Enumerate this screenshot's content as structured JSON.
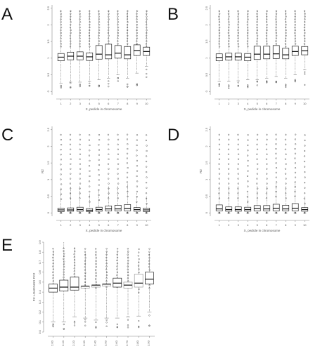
{
  "chart_data": [
    {
      "type": "box",
      "panel": "A",
      "xlabel": "X, pedicle in chromosome",
      "ylabel": "",
      "categories": [
        "1",
        "2",
        "3",
        "4",
        "5",
        "6",
        "7",
        "8",
        "9",
        "10"
      ],
      "yticks": [
        "0",
        "0.5",
        "1",
        "1.5",
        "2",
        "2.5"
      ],
      "ylim": [
        -0.1,
        2.6
      ],
      "boxes": [
        {
          "q1": 0.92,
          "median": 1.03,
          "q3": 1.14,
          "low": 0.25,
          "high": 2.45,
          "notch_out": 0.1,
          "notch_in": 0.15
        },
        {
          "q1": 0.95,
          "median": 1.06,
          "q3": 1.18,
          "low": 0.28,
          "high": 2.45
        },
        {
          "q1": 0.95,
          "median": 1.06,
          "q3": 1.19,
          "low": 0.28,
          "high": 2.45
        },
        {
          "q1": 0.93,
          "median": 1.04,
          "q3": 1.16,
          "low": 0.3,
          "high": 2.45
        },
        {
          "q1": 0.97,
          "median": 1.12,
          "q3": 1.38,
          "low": 0.35,
          "high": 2.45
        },
        {
          "q1": 0.98,
          "median": 1.1,
          "q3": 1.42,
          "low": 0.4,
          "high": 2.45
        },
        {
          "q1": 1.0,
          "median": 1.15,
          "q3": 1.38,
          "low": 0.5,
          "high": 2.45
        },
        {
          "q1": 0.98,
          "median": 1.1,
          "q3": 1.35,
          "low": 0.4,
          "high": 2.45
        },
        {
          "q1": 1.08,
          "median": 1.23,
          "q3": 1.4,
          "low": 0.55,
          "high": 2.45
        },
        {
          "q1": 1.08,
          "median": 1.2,
          "q3": 1.33,
          "low": 0.75,
          "high": 2.45
        }
      ]
    },
    {
      "type": "box",
      "panel": "B",
      "xlabel": "X, pedicle in chromosome",
      "ylabel": "",
      "categories": [
        "1",
        "2",
        "3",
        "4",
        "5",
        "6",
        "7",
        "8",
        "9",
        "10"
      ],
      "yticks": [
        "0",
        "0.5",
        "1",
        "1.5",
        "2",
        "2.5"
      ],
      "ylim": [
        -0.1,
        2.6
      ],
      "boxes": [
        {
          "q1": 0.92,
          "median": 1.02,
          "q3": 1.13,
          "low": 0.3,
          "high": 2.45
        },
        {
          "q1": 0.94,
          "median": 1.04,
          "q3": 1.15,
          "low": 0.3,
          "high": 2.45
        },
        {
          "q1": 0.94,
          "median": 1.04,
          "q3": 1.15,
          "low": 0.32,
          "high": 2.45
        },
        {
          "q1": 0.92,
          "median": 1.03,
          "q3": 1.14,
          "low": 0.35,
          "high": 2.45
        },
        {
          "q1": 0.96,
          "median": 1.12,
          "q3": 1.36,
          "low": 0.35,
          "high": 2.45
        },
        {
          "q1": 0.98,
          "median": 1.12,
          "q3": 1.36,
          "low": 0.4,
          "high": 2.45
        },
        {
          "q1": 0.99,
          "median": 1.13,
          "q3": 1.38,
          "low": 0.45,
          "high": 2.45
        },
        {
          "q1": 0.98,
          "median": 1.1,
          "q3": 1.3,
          "low": 0.4,
          "high": 2.45
        },
        {
          "q1": 1.08,
          "median": 1.2,
          "q3": 1.36,
          "low": 0.5,
          "high": 2.45
        },
        {
          "q1": 1.1,
          "median": 1.22,
          "q3": 1.35,
          "low": 0.65,
          "high": 2.45
        }
      ]
    },
    {
      "type": "box",
      "panel": "C",
      "xlabel": "X, pedicle in chromosome",
      "ylabel": "R2",
      "categories": [
        "1",
        "2",
        "3",
        "4",
        "5",
        "6",
        "7",
        "8",
        "9",
        "10"
      ],
      "yticks": [
        "0",
        "0.5",
        "1",
        "1.5",
        "2",
        "2.5"
      ],
      "ylim": [
        -0.1,
        2.6
      ],
      "boxes": [
        {
          "q1": 0.04,
          "median": 0.09,
          "q3": 0.14,
          "low": 0.0,
          "high": 0.75
        },
        {
          "q1": 0.05,
          "median": 0.09,
          "q3": 0.15,
          "low": 0.0,
          "high": 0.8
        },
        {
          "q1": 0.05,
          "median": 0.1,
          "q3": 0.17,
          "low": 0.0,
          "high": 0.8
        },
        {
          "q1": 0.04,
          "median": 0.08,
          "q3": 0.13,
          "low": 0.0,
          "high": 0.6
        },
        {
          "q1": 0.05,
          "median": 0.1,
          "q3": 0.17,
          "low": 0.0,
          "high": 0.7
        },
        {
          "q1": 0.06,
          "median": 0.12,
          "q3": 0.21,
          "low": 0.0,
          "high": 0.8
        },
        {
          "q1": 0.06,
          "median": 0.12,
          "q3": 0.23,
          "low": 0.0,
          "high": 0.8
        },
        {
          "q1": 0.06,
          "median": 0.13,
          "q3": 0.25,
          "low": 0.0,
          "high": 0.9
        },
        {
          "q1": 0.05,
          "median": 0.1,
          "q3": 0.16,
          "low": 0.0,
          "high": 0.6
        },
        {
          "q1": 0.04,
          "median": 0.09,
          "q3": 0.14,
          "low": 0.0,
          "high": 0.5
        }
      ]
    },
    {
      "type": "box",
      "panel": "D",
      "xlabel": "X, pedicle in chromosome",
      "ylabel": "R2",
      "categories": [
        "1",
        "2",
        "3",
        "4",
        "5",
        "6",
        "7",
        "8",
        "9",
        "10"
      ],
      "yticks": [
        "0",
        "0.5",
        "1",
        "1.5",
        "2",
        "2.5"
      ],
      "ylim": [
        -0.1,
        2.6
      ],
      "boxes": [
        {
          "q1": 0.06,
          "median": 0.12,
          "q3": 0.24,
          "low": 0.0,
          "high": 0.8
        },
        {
          "q1": 0.05,
          "median": 0.1,
          "q3": 0.18,
          "low": 0.0,
          "high": 0.8
        },
        {
          "q1": 0.05,
          "median": 0.1,
          "q3": 0.18,
          "low": 0.0,
          "high": 0.8
        },
        {
          "q1": 0.05,
          "median": 0.1,
          "q3": 0.17,
          "low": 0.0,
          "high": 0.6
        },
        {
          "q1": 0.06,
          "median": 0.13,
          "q3": 0.22,
          "low": 0.0,
          "high": 0.8
        },
        {
          "q1": 0.06,
          "median": 0.12,
          "q3": 0.22,
          "low": 0.0,
          "high": 0.8
        },
        {
          "q1": 0.06,
          "median": 0.14,
          "q3": 0.26,
          "low": 0.0,
          "high": 0.9
        },
        {
          "q1": 0.06,
          "median": 0.12,
          "q3": 0.23,
          "low": 0.0,
          "high": 0.8
        },
        {
          "q1": 0.06,
          "median": 0.14,
          "q3": 0.28,
          "low": 0.0,
          "high": 0.9
        },
        {
          "q1": 0.05,
          "median": 0.1,
          "q3": 0.16,
          "low": 0.0,
          "high": 0.5
        }
      ]
    },
    {
      "type": "box",
      "panel": "E",
      "xlabel": "",
      "ylabel": "PC LOADINGS PC2",
      "categories": [
        "2.00",
        "2.10",
        "2.20",
        "2.30",
        "2.40",
        "2.50",
        "2.60",
        "2.70",
        "2.80",
        "2.90"
      ],
      "yticks": [
        "0.0",
        "0.1",
        "0.2",
        "0.3",
        "0.4",
        "0.5",
        "0.6",
        "0.7",
        "0.8",
        "0.9"
      ],
      "ylim": [
        0.0,
        0.9
      ],
      "boxes": [
        {
          "q1": 0.4,
          "median": 0.44,
          "q3": 0.48,
          "low": 0.1,
          "high": 0.82
        },
        {
          "q1": 0.41,
          "median": 0.45,
          "q3": 0.52,
          "low": 0.1,
          "high": 0.9
        },
        {
          "q1": 0.42,
          "median": 0.45,
          "q3": 0.55,
          "low": 0.15,
          "high": 0.85
        },
        {
          "q1": 0.44,
          "median": 0.46,
          "q3": 0.46,
          "low": 0.14,
          "high": 0.8,
          "gray": true
        },
        {
          "q1": 0.45,
          "median": 0.47,
          "q3": 0.47,
          "low": 0.12,
          "high": 0.8,
          "gray": true
        },
        {
          "q1": 0.46,
          "median": 0.48,
          "q3": 0.48,
          "low": 0.14,
          "high": 0.82,
          "gray": true
        },
        {
          "q1": 0.45,
          "median": 0.49,
          "q3": 0.54,
          "low": 0.14,
          "high": 0.82
        },
        {
          "q1": 0.44,
          "median": 0.47,
          "q3": 0.5,
          "low": 0.15,
          "high": 0.82,
          "gray": true
        },
        {
          "q1": 0.45,
          "median": 0.49,
          "q3": 0.58,
          "low": 0.16,
          "high": 0.72,
          "gray": true
        },
        {
          "q1": 0.48,
          "median": 0.53,
          "q3": 0.6,
          "low": 0.2,
          "high": 0.8
        }
      ]
    }
  ]
}
